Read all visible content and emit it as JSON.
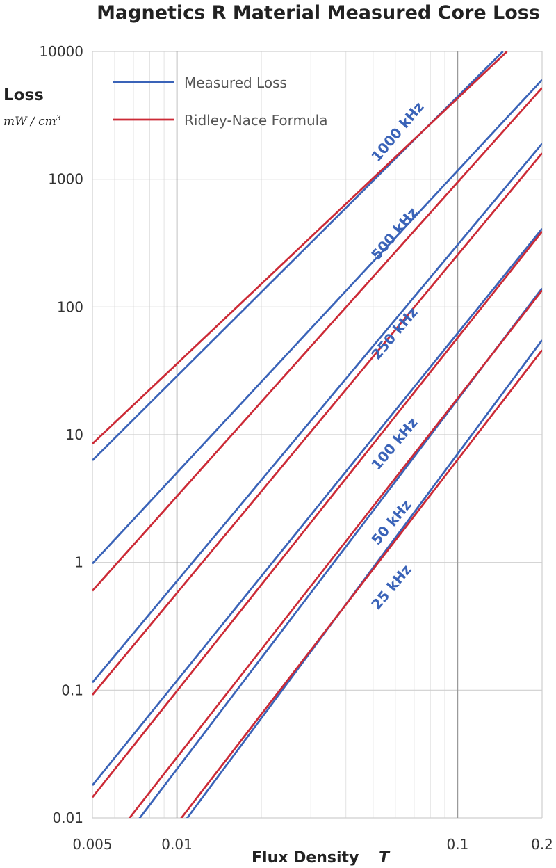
{
  "chart_data": {
    "type": "line",
    "title": "Magnetics R Material Measured Core Loss",
    "ylabel": "Loss",
    "yunit": "mW / cm",
    "yunit_sup": "3",
    "xlabel": "Flux Density",
    "xunit": "T",
    "x_scale": "log",
    "y_scale": "log",
    "xlim": [
      0.005,
      0.2
    ],
    "ylim": [
      0.01,
      10000
    ],
    "x_ticks": [
      {
        "value": 0.005,
        "label": "0.005"
      },
      {
        "value": 0.01,
        "label": "0.01"
      },
      {
        "value": 0.1,
        "label": "0.1"
      },
      {
        "value": 0.2,
        "label": "0.2"
      }
    ],
    "y_ticks": [
      {
        "value": 0.01,
        "label": "0.01"
      },
      {
        "value": 0.1,
        "label": "0.1"
      },
      {
        "value": 1,
        "label": "1"
      },
      {
        "value": 10,
        "label": "10"
      },
      {
        "value": 100,
        "label": "100"
      },
      {
        "value": 1000,
        "label": "1000"
      },
      {
        "value": 10000,
        "label": "10000"
      }
    ],
    "grid": true,
    "legend_position": "top-left",
    "legend": [
      {
        "label": "Measured Loss",
        "color": "#3a63b8"
      },
      {
        "label": "Ridley-Nace Formula",
        "color": "#cc2a36"
      }
    ],
    "series": [
      {
        "frequency": "1000 kHz",
        "kind": "measured",
        "color": "#3a63b8",
        "points": [
          [
            0.005,
            6.3
          ],
          [
            0.145,
            10000
          ]
        ]
      },
      {
        "frequency": "1000 kHz",
        "kind": "formula",
        "color": "#cc2a36",
        "points": [
          [
            0.005,
            8.5
          ],
          [
            0.15,
            10000
          ]
        ]
      },
      {
        "frequency": "500 kHz",
        "kind": "measured",
        "color": "#3a63b8",
        "points": [
          [
            0.005,
            0.98
          ],
          [
            0.2,
            6000
          ]
        ]
      },
      {
        "frequency": "500 kHz",
        "kind": "formula",
        "color": "#cc2a36",
        "points": [
          [
            0.005,
            0.6
          ],
          [
            0.2,
            5200
          ]
        ]
      },
      {
        "frequency": "250 kHz",
        "kind": "measured",
        "color": "#3a63b8",
        "points": [
          [
            0.005,
            0.115
          ],
          [
            0.2,
            1900
          ]
        ]
      },
      {
        "frequency": "250 kHz",
        "kind": "formula",
        "color": "#cc2a36",
        "points": [
          [
            0.005,
            0.092
          ],
          [
            0.2,
            1600
          ]
        ]
      },
      {
        "frequency": "100 kHz",
        "kind": "measured",
        "color": "#3a63b8",
        "points": [
          [
            0.005,
            0.018
          ],
          [
            0.2,
            410
          ]
        ]
      },
      {
        "frequency": "100 kHz",
        "kind": "formula",
        "color": "#cc2a36",
        "points": [
          [
            0.005,
            0.0145
          ],
          [
            0.2,
            390
          ]
        ]
      },
      {
        "frequency": "50 kHz",
        "kind": "measured",
        "color": "#3a63b8",
        "points": [
          [
            0.0068,
            0.0079
          ],
          [
            0.2,
            140
          ]
        ]
      },
      {
        "frequency": "50 kHz",
        "kind": "formula",
        "color": "#cc2a36",
        "points": [
          [
            0.0064,
            0.0085
          ],
          [
            0.2,
            135
          ]
        ]
      },
      {
        "frequency": "25 kHz",
        "kind": "measured",
        "color": "#3a63b8",
        "points": [
          [
            0.0103,
            0.0085
          ],
          [
            0.2,
            55
          ]
        ]
      },
      {
        "frequency": "25 kHz",
        "kind": "formula",
        "color": "#cc2a36",
        "points": [
          [
            0.0098,
            0.0085
          ],
          [
            0.2,
            46
          ]
        ]
      }
    ],
    "annotations": [
      {
        "text": "1000 kHz",
        "x": 0.052,
        "y": 1350
      },
      {
        "text": "500 kHz",
        "x": 0.052,
        "y": 230
      },
      {
        "text": "250 kHz",
        "x": 0.052,
        "y": 38
      },
      {
        "text": "100 kHz",
        "x": 0.052,
        "y": 5.2
      },
      {
        "text": "50 kHz",
        "x": 0.052,
        "y": 1.35
      },
      {
        "text": "25 kHz",
        "x": 0.052,
        "y": 0.42
      }
    ]
  }
}
